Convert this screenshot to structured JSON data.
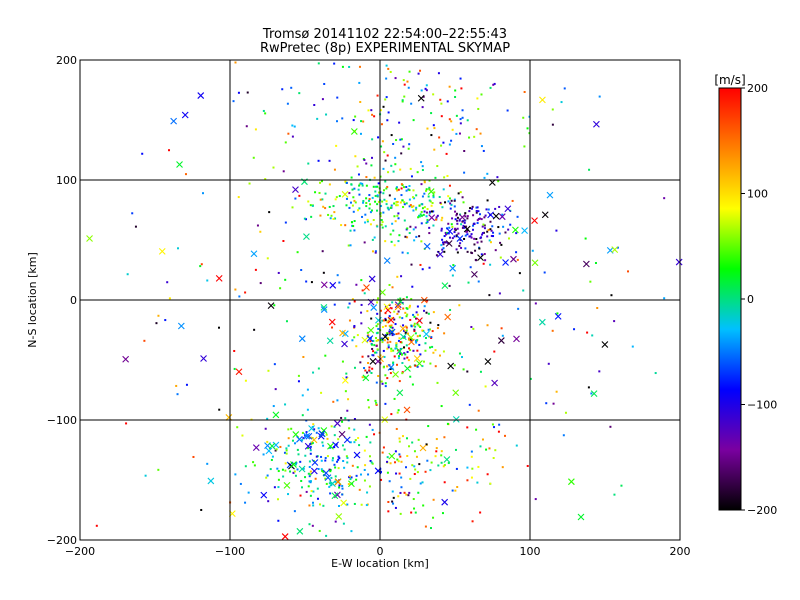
{
  "chart_data": {
    "type": "scatter",
    "title": "Tromsø 20141102 22:54:00–22:55:43",
    "subtitle": "RwPretec (8p) EXPERIMENTAL SKYMAP",
    "xlabel": "E-W location [km]",
    "ylabel": "N-S location [km]",
    "xlim": [
      -200,
      200
    ],
    "ylim": [
      -200,
      200
    ],
    "xticks": [
      "-200",
      "-100",
      "0",
      "100",
      "200"
    ],
    "yticks": [
      "-200",
      "-100",
      "0",
      "100",
      "200"
    ],
    "grid": true,
    "colorbar": {
      "label": "[m/s]",
      "range": [
        -200,
        200
      ],
      "ticks": [
        "200",
        "100",
        "0",
        "-100",
        "-200"
      ],
      "colormap": [
        "#000000",
        "#7a00a0",
        "#0000ff",
        "#00c0ff",
        "#00ff00",
        "#ffff00",
        "#ff8000",
        "#ff0000"
      ]
    },
    "series": [
      {
        "marker": "dot",
        "clusters": [
          {
            "cx": 5,
            "cy": 80,
            "sx": 25,
            "sy": 15,
            "n": 260,
            "v": 20,
            "vs": 60
          },
          {
            "cx": 55,
            "cy": 60,
            "sx": 15,
            "sy": 12,
            "n": 170,
            "v": -130,
            "vs": 50
          },
          {
            "cx": 10,
            "cy": -30,
            "sx": 14,
            "sy": 18,
            "n": 260,
            "v": 10,
            "vs": 110
          },
          {
            "cx": -40,
            "cy": -140,
            "sx": 20,
            "sy": 22,
            "n": 200,
            "v": -10,
            "vs": 60
          },
          {
            "cx": 20,
            "cy": -140,
            "sx": 30,
            "sy": 25,
            "n": 140,
            "v": 60,
            "vs": 110
          },
          {
            "cx": 20,
            "cy": 150,
            "sx": 45,
            "sy": 30,
            "n": 160,
            "v": 0,
            "vs": 110
          },
          {
            "cx": 0,
            "cy": 0,
            "sx": 90,
            "sy": 95,
            "n": 280,
            "v": 0,
            "vs": 120
          }
        ]
      },
      {
        "marker": "x",
        "clusters": [
          {
            "cx": 55,
            "cy": 55,
            "sx": 25,
            "sy": 25,
            "n": 20,
            "v": -150,
            "vs": 60
          },
          {
            "cx": -45,
            "cy": -135,
            "sx": 25,
            "sy": 25,
            "n": 45,
            "v": -20,
            "vs": 80
          },
          {
            "cx": 10,
            "cy": -30,
            "sx": 20,
            "sy": 20,
            "n": 35,
            "v": 0,
            "vs": 130
          },
          {
            "cx": 0,
            "cy": 0,
            "sx": 100,
            "sy": 100,
            "n": 70,
            "v": 0,
            "vs": 130
          }
        ]
      }
    ]
  }
}
